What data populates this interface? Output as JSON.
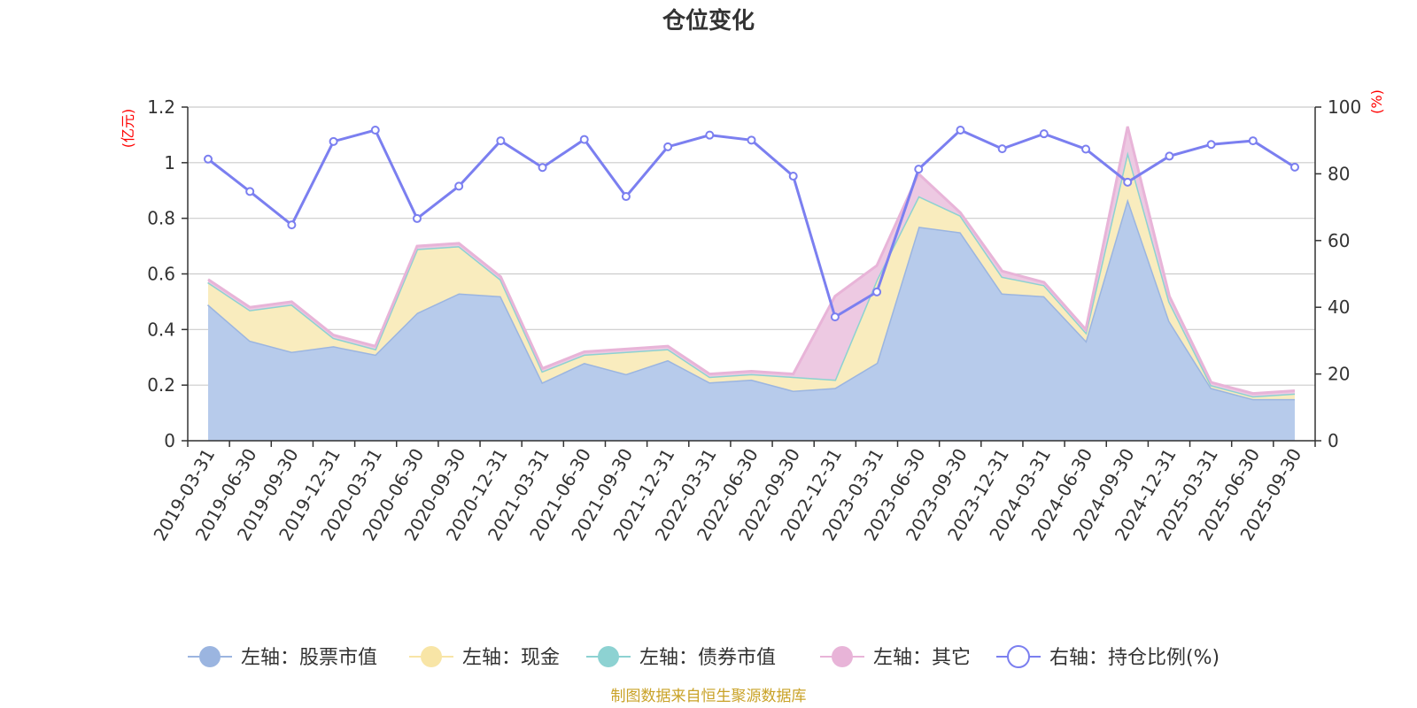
{
  "chart_data": {
    "type": "area",
    "title": "仓位变化",
    "left_axis_unit": "(亿元)",
    "right_axis_unit": "(%)",
    "ylim_left": [
      0,
      1.2
    ],
    "ylim_right": [
      0,
      100
    ],
    "left_ticks": [
      "0",
      "0.2",
      "0.4",
      "0.6",
      "0.8",
      "1",
      "1.2"
    ],
    "right_ticks": [
      "0",
      "20",
      "40",
      "60",
      "80",
      "100"
    ],
    "grid": true,
    "legend_position": "bottom",
    "source": "制图数据来自恒生聚源数据库",
    "categories": [
      "2019-03-31",
      "2019-06-30",
      "2019-09-30",
      "2019-12-31",
      "2020-03-31",
      "2020-06-30",
      "2020-09-30",
      "2020-12-31",
      "2021-03-31",
      "2021-06-30",
      "2021-09-30",
      "2021-12-31",
      "2022-03-31",
      "2022-06-30",
      "2022-09-30",
      "2022-12-31",
      "2023-03-31",
      "2023-06-30",
      "2023-09-30",
      "2023-12-31",
      "2024-03-31",
      "2024-06-30",
      "2024-09-30",
      "2024-12-31",
      "2025-03-31",
      "2025-06-30",
      "2025-09-30"
    ],
    "series": [
      {
        "name": "左轴：股票市值",
        "axis": "left",
        "color": "#9bb5e0",
        "fill": "#b7cbeb",
        "values": [
          0.49,
          0.36,
          0.32,
          0.34,
          0.31,
          0.46,
          0.53,
          0.52,
          0.21,
          0.28,
          0.24,
          0.29,
          0.21,
          0.22,
          0.18,
          0.19,
          0.28,
          0.77,
          0.75,
          0.53,
          0.52,
          0.36,
          0.87,
          0.43,
          0.19,
          0.15,
          0.15
        ]
      },
      {
        "name": "左轴：现金",
        "axis": "left",
        "color": "#f8e5a6",
        "fill": "#f9ecbe",
        "values": [
          0.08,
          0.11,
          0.17,
          0.03,
          0.02,
          0.23,
          0.17,
          0.06,
          0.04,
          0.03,
          0.08,
          0.04,
          0.02,
          0.02,
          0.05,
          0.03,
          0.3,
          0.11,
          0.06,
          0.06,
          0.04,
          0.03,
          0.17,
          0.07,
          0.01,
          0.01,
          0.02
        ]
      },
      {
        "name": "左轴：债券市值",
        "axis": "left",
        "color": "#8dd2d2",
        "fill": "#b3e2e2",
        "values": [
          0,
          0,
          0,
          0,
          0,
          0,
          0,
          0,
          0,
          0,
          0,
          0,
          0,
          0,
          0,
          0,
          0,
          0,
          0,
          0,
          0,
          0,
          0,
          0,
          0,
          0,
          0
        ]
      },
      {
        "name": "左轴：其它",
        "axis": "left",
        "color": "#e8b4d8",
        "fill": "#edc9e2",
        "values": [
          0.01,
          0.01,
          0.01,
          0.01,
          0.01,
          0.01,
          0.01,
          0.01,
          0.01,
          0.01,
          0.01,
          0.01,
          0.01,
          0.01,
          0.01,
          0.3,
          0.05,
          0.08,
          0.01,
          0.02,
          0.01,
          0.01,
          0.09,
          0.02,
          0.01,
          0.01,
          0.01
        ]
      },
      {
        "name": "右轴：持仓比例(%)",
        "axis": "right",
        "color": "#7b7ff0",
        "values": [
          84.4,
          74.7,
          64.7,
          89.7,
          93.1,
          66.6,
          76.3,
          89.9,
          81.9,
          90.3,
          73.2,
          88.1,
          91.6,
          90.1,
          79.3,
          37.1,
          44.6,
          81.4,
          93.1,
          87.5,
          92.0,
          87.4,
          77.5,
          85.3,
          88.8,
          89.9,
          82.0
        ]
      }
    ]
  }
}
